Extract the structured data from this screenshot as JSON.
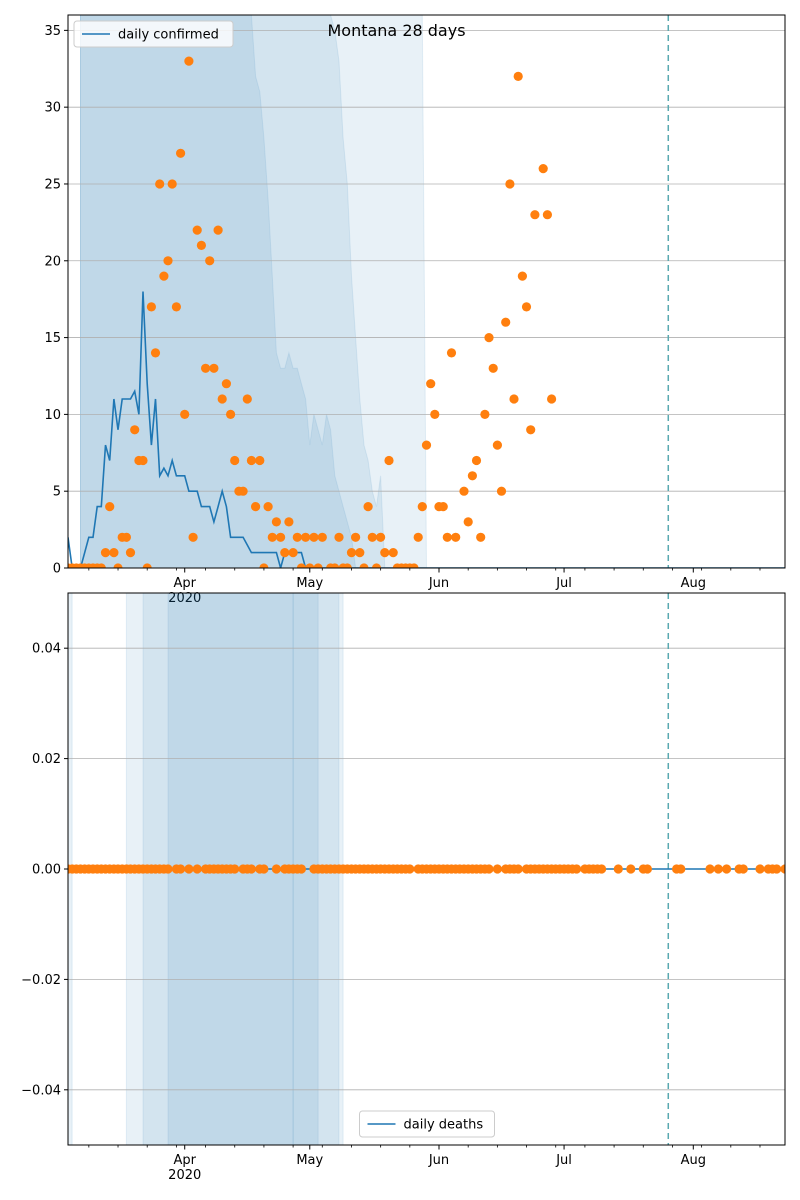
{
  "chart_data": [
    {
      "type": "line",
      "title": "Montana 28 days",
      "xlabel": "",
      "ylabel": "",
      "ylim": [
        0,
        36
      ],
      "yticks": [
        0,
        5,
        10,
        15,
        20,
        25,
        30,
        35
      ],
      "xlim": [
        "2020-03-04",
        "2020-08-23"
      ],
      "xticks": [
        {
          "date": "2020-04-01",
          "label": "Apr",
          "sublabel": "2020"
        },
        {
          "date": "2020-05-01",
          "label": "May",
          "sublabel": ""
        },
        {
          "date": "2020-06-01",
          "label": "Jun",
          "sublabel": ""
        },
        {
          "date": "2020-07-01",
          "label": "Jul",
          "sublabel": ""
        },
        {
          "date": "2020-08-01",
          "label": "Aug",
          "sublabel": ""
        }
      ],
      "grid": "horizontal",
      "legend": {
        "placement": "top-left",
        "entries": [
          "daily confirmed"
        ]
      },
      "vline": "2020-07-26",
      "colors": {
        "line": "#1f77b4",
        "points": "#ff7f0e",
        "band": "#1f77b4",
        "vline": "#5aa9b0"
      },
      "bands": [
        {
          "start": "2020-03-07",
          "upper": [
            36,
            36,
            36,
            36,
            36,
            36,
            36,
            36,
            36,
            36,
            36,
            36,
            36,
            36,
            36,
            36,
            36,
            36,
            36,
            36,
            36,
            36,
            36,
            36,
            36,
            36,
            36,
            36,
            36,
            36,
            36,
            36,
            36,
            36,
            36,
            36,
            36,
            36,
            36,
            36,
            36,
            36,
            32,
            31,
            28,
            24,
            19,
            14,
            13,
            13,
            14,
            13,
            13,
            12,
            11,
            8,
            10,
            9,
            8,
            10,
            9,
            6,
            5,
            4,
            3,
            2,
            0,
            0
          ]
        },
        {
          "start": "2020-03-07",
          "upper": [
            36,
            36,
            36,
            36,
            36,
            36,
            36,
            36,
            36,
            36,
            36,
            36,
            36,
            36,
            36,
            36,
            36,
            36,
            36,
            36,
            36,
            36,
            36,
            36,
            36,
            36,
            36,
            36,
            36,
            36,
            36,
            36,
            36,
            36,
            36,
            36,
            36,
            36,
            36,
            36,
            36,
            36,
            36,
            36,
            36,
            36,
            36,
            36,
            36,
            36,
            36,
            36,
            36,
            36,
            36,
            36,
            36,
            36,
            36,
            36,
            36,
            35,
            33,
            28,
            25,
            19,
            15,
            11,
            8,
            7,
            5,
            4,
            6,
            0
          ]
        },
        {
          "start": "2020-03-07",
          "upper": [
            36,
            36,
            36,
            36,
            36,
            36,
            36,
            36,
            36,
            36,
            36,
            36,
            36,
            36,
            36,
            36,
            36,
            36,
            36,
            36,
            36,
            36,
            36,
            36,
            36,
            36,
            36,
            36,
            36,
            36,
            36,
            36,
            36,
            36,
            36,
            36,
            36,
            36,
            36,
            36,
            36,
            36,
            36,
            36,
            36,
            36,
            36,
            36,
            36,
            36,
            36,
            36,
            36,
            36,
            36,
            36,
            36,
            36,
            36,
            36,
            36,
            36,
            36,
            36,
            36,
            36,
            36,
            36,
            36,
            36,
            36,
            36,
            36,
            36,
            36,
            36,
            36,
            36,
            36,
            36,
            36,
            36,
            36,
            0
          ]
        }
      ],
      "series": [
        {
          "name": "daily confirmed",
          "kind": "line",
          "start": "2020-03-04",
          "values": [
            2,
            0,
            0,
            0,
            1,
            2,
            2,
            4,
            4,
            8,
            7,
            11,
            9,
            11,
            11,
            11,
            11.5,
            10,
            18,
            12,
            8,
            11,
            6,
            6.5,
            6,
            7,
            6,
            6,
            6,
            5,
            5,
            5,
            4,
            4,
            4,
            3,
            4,
            5,
            4,
            2,
            2,
            2,
            2,
            1.5,
            1,
            1,
            1,
            1,
            1,
            1,
            1,
            0,
            1,
            1,
            1,
            1,
            1,
            0,
            0,
            0,
            0,
            0,
            0,
            0,
            0,
            0,
            0,
            0,
            0,
            0,
            0,
            0,
            0,
            0,
            0,
            0,
            0,
            0,
            0,
            0,
            0,
            0,
            0,
            0,
            0,
            0,
            0,
            0,
            0,
            0,
            0,
            0,
            0,
            0,
            0,
            0,
            0,
            0,
            0,
            0,
            0,
            0,
            0,
            0,
            0,
            0,
            0,
            0,
            0,
            0,
            0,
            0,
            0,
            0,
            0,
            0,
            0,
            0,
            0,
            0,
            0,
            0,
            0,
            0,
            0,
            0,
            0,
            0,
            0,
            0,
            0,
            0,
            0,
            0,
            0,
            0,
            0,
            0,
            0,
            0,
            0,
            0,
            0,
            0,
            0,
            0,
            0,
            0,
            0,
            0,
            0,
            0,
            0,
            0,
            0,
            0,
            0,
            0,
            0,
            0,
            0,
            0,
            0,
            0,
            0,
            0,
            0,
            0,
            0,
            0,
            0,
            0,
            0,
            0,
            0,
            0,
            0
          ]
        },
        {
          "name": "",
          "kind": "points",
          "start": "2020-03-04",
          "values": [
            0,
            0,
            0,
            0,
            0,
            0,
            0,
            0,
            0,
            1,
            4,
            1,
            0,
            2,
            2,
            1,
            9,
            7,
            7,
            0,
            17,
            14,
            25,
            19,
            20,
            25,
            17,
            27,
            10,
            33,
            2,
            22,
            21,
            13,
            20,
            13,
            22,
            11,
            12,
            10,
            7,
            5,
            5,
            11,
            7,
            4,
            7,
            0,
            4,
            2,
            3,
            2,
            1,
            3,
            1,
            2,
            0,
            2,
            0,
            2,
            0,
            2,
            null,
            0,
            0,
            2,
            0,
            0,
            1,
            2,
            1,
            0,
            4,
            2,
            0,
            2,
            1,
            7,
            1,
            0,
            0,
            0,
            0,
            0,
            2,
            4,
            8,
            12,
            10,
            4,
            4,
            2,
            14,
            2,
            null,
            5,
            3,
            6,
            7,
            2,
            10,
            15,
            13,
            8,
            5,
            16,
            25,
            11,
            32,
            19,
            17,
            9,
            23,
            null,
            26,
            23,
            11
          ]
        }
      ]
    },
    {
      "type": "line",
      "title": "",
      "xlabel": "",
      "ylabel": "",
      "ylim": [
        -0.05,
        0.05
      ],
      "yticks": [
        -0.04,
        -0.02,
        0.0,
        0.02,
        0.04
      ],
      "ytick_labels": [
        "−0.04",
        "−0.02",
        "0.00",
        "0.02",
        "0.04"
      ],
      "xlim": [
        "2020-03-04",
        "2020-08-23"
      ],
      "xticks": [
        {
          "date": "2020-04-01",
          "label": "Apr",
          "sublabel": "2020"
        },
        {
          "date": "2020-05-01",
          "label": "May",
          "sublabel": ""
        },
        {
          "date": "2020-06-01",
          "label": "Jun",
          "sublabel": ""
        },
        {
          "date": "2020-07-01",
          "label": "Jul",
          "sublabel": ""
        },
        {
          "date": "2020-08-01",
          "label": "Aug",
          "sublabel": ""
        }
      ],
      "grid": "horizontal",
      "legend": {
        "placement": "bottom-center",
        "entries": [
          "daily deaths"
        ]
      },
      "vline": "2020-07-26",
      "colors": {
        "line": "#1f77b4",
        "points": "#ff7f0e",
        "band": "#1f77b4",
        "vline": "#5aa9b0"
      },
      "rects": [
        {
          "x0": "2020-03-04",
          "x1": "2020-03-05"
        },
        {
          "x0": "2020-03-18",
          "x1": "2020-05-09"
        },
        {
          "x0": "2020-03-22",
          "x1": "2020-05-08"
        },
        {
          "x0": "2020-03-28",
          "x1": "2020-04-27"
        },
        {
          "x0": "2020-04-27",
          "x1": "2020-05-03"
        }
      ],
      "series": [
        {
          "name": "daily deaths",
          "kind": "line",
          "start": "2020-03-04",
          "values": [
            0,
            0,
            0,
            0,
            0,
            0,
            0,
            0,
            0,
            0,
            0,
            0,
            0,
            0,
            0,
            0,
            0,
            0,
            0,
            0,
            0,
            0,
            0,
            0,
            0,
            0,
            0,
            0,
            0,
            0,
            0,
            0,
            0,
            0,
            0,
            0,
            0,
            0,
            0,
            0,
            0,
            0,
            0,
            0,
            0,
            0,
            0,
            0,
            0,
            0,
            0,
            0,
            0,
            0,
            0,
            0,
            0,
            0,
            0,
            0,
            0,
            0,
            0,
            0,
            0,
            0,
            0,
            0,
            0,
            0,
            0,
            0,
            0,
            0,
            0,
            0,
            0,
            0,
            0,
            0,
            0,
            0,
            0,
            0,
            0,
            0,
            0,
            0,
            0,
            0,
            0,
            0,
            0,
            0,
            0,
            0,
            0,
            0,
            0,
            0,
            0,
            0,
            0,
            0,
            0,
            0,
            0,
            0,
            0,
            0,
            0,
            0,
            0,
            0,
            0,
            0,
            0,
            0,
            0,
            0,
            0,
            0,
            0,
            0,
            0,
            0,
            0,
            0,
            0,
            0,
            0,
            0,
            0,
            0,
            0,
            0,
            0,
            0,
            0,
            0,
            0,
            0,
            0,
            0,
            0,
            0,
            0,
            0,
            0,
            0,
            0,
            0,
            0,
            0,
            0,
            0,
            0,
            0,
            0,
            0,
            0,
            0,
            0,
            0,
            0,
            0,
            0,
            0,
            0,
            0,
            0,
            0,
            0
          ]
        },
        {
          "name": "",
          "kind": "points",
          "start": "2020-03-04",
          "values": [
            0,
            0,
            0,
            0,
            0,
            0,
            0,
            0,
            0,
            0,
            0,
            0,
            0,
            0,
            0,
            0,
            0,
            0,
            0,
            0,
            0,
            0,
            0,
            0,
            0,
            null,
            0,
            0,
            null,
            0,
            null,
            0,
            null,
            0,
            0,
            0,
            0,
            0,
            0,
            0,
            0,
            null,
            0,
            0,
            0,
            null,
            0,
            0,
            null,
            null,
            0,
            null,
            0,
            0,
            0,
            0,
            0,
            null,
            null,
            0,
            0,
            0,
            0,
            0,
            0,
            0,
            0,
            0,
            0,
            0,
            0,
            0,
            0,
            0,
            0,
            0,
            0,
            0,
            0,
            0,
            0,
            0,
            0,
            null,
            0,
            0,
            0,
            0,
            0,
            0,
            0,
            0,
            0,
            0,
            0,
            0,
            0,
            0,
            0,
            0,
            0,
            0,
            null,
            0,
            null,
            0,
            0,
            0,
            0,
            null,
            0,
            0,
            0,
            0,
            0,
            0,
            0,
            0,
            0,
            0,
            0,
            0,
            0,
            null,
            0,
            0,
            0,
            0,
            0,
            null,
            null,
            null,
            0,
            null,
            null,
            0,
            null,
            null,
            0,
            0,
            null,
            null,
            null,
            null,
            null,
            null,
            0,
            0,
            null,
            null,
            null,
            null,
            null,
            null,
            0,
            null,
            0,
            null,
            0,
            null,
            null,
            0,
            0,
            null,
            null,
            null,
            0,
            null,
            0,
            0,
            0,
            null,
            0,
            null,
            0,
            null,
            0,
            0
          ]
        }
      ]
    }
  ]
}
